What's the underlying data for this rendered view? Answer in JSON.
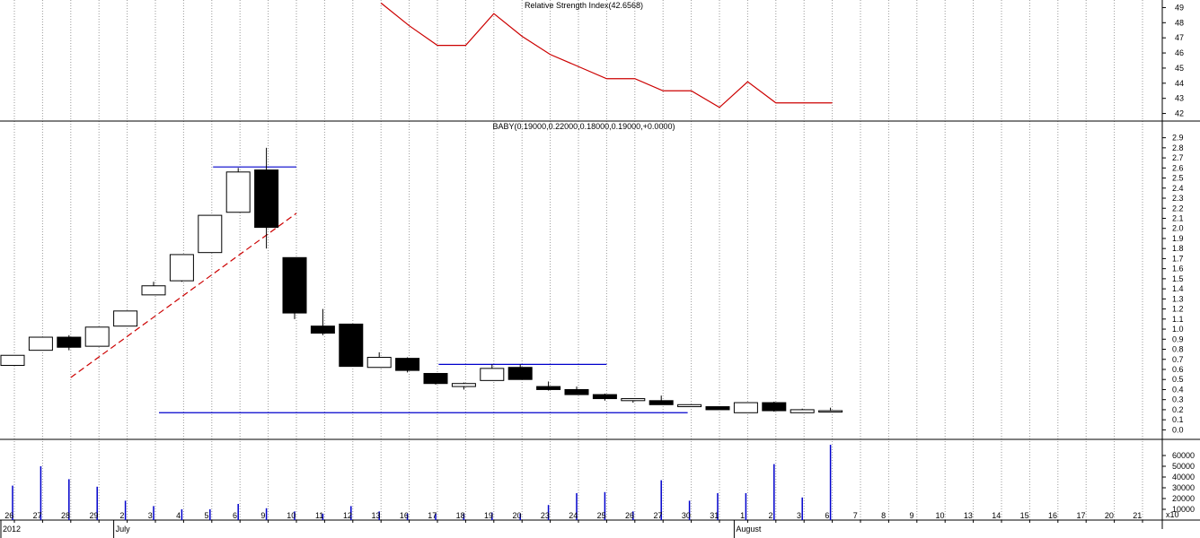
{
  "colors": {
    "background": "#ffffff",
    "grid": "#9a9a9a",
    "rsi_line": "#cc0000",
    "trendline": "#cc0000",
    "level_line": "#0000cc",
    "volume_bar": "#0000cc",
    "up_candle_fill": "#ffffff",
    "down_candle_fill": "#000000",
    "border": "#000000"
  },
  "chart_data": [
    {
      "type": "line",
      "panel": "rsi",
      "title": "Relative Strength Index(42.6568)",
      "y_ticks": [
        "49",
        "48",
        "47",
        "46",
        "45",
        "44",
        "43",
        "42"
      ],
      "ylim": [
        41.5,
        49.5
      ],
      "grid": true,
      "series": [
        {
          "x": [
            "13",
            "16",
            "17",
            "18",
            "19",
            "20",
            "23",
            "24",
            "25",
            "26",
            "27",
            "30",
            "31",
            "1",
            "2",
            "3",
            "6"
          ],
          "values": [
            49.3,
            47.8,
            46.5,
            46.5,
            48.6,
            47.1,
            45.9,
            45.1,
            44.3,
            44.3,
            43.5,
            43.5,
            42.4,
            44.1,
            42.7,
            42.7,
            42.7
          ]
        }
      ]
    },
    {
      "type": "candlestick",
      "panel": "price",
      "title": "BABY(0.19000,0.22000,0.18000,0.19000,+0.0000)",
      "y_ticks": [
        "2.9",
        "2.8",
        "2.7",
        "2.6",
        "2.5",
        "2.4",
        "2.3",
        "2.2",
        "2.1",
        "2.0",
        "1.9",
        "1.8",
        "1.7",
        "1.6",
        "1.5",
        "1.4",
        "1.3",
        "1.2",
        "1.1",
        "1.0",
        "0.9",
        "0.8",
        "0.7",
        "0.6",
        "0.5",
        "0.4",
        "0.3",
        "0.2",
        "0.1",
        "0.0"
      ],
      "ylim": [
        -0.05,
        2.95
      ],
      "grid": true,
      "candles": [
        {
          "x": "26",
          "open": 0.64,
          "high": 0.74,
          "low": 0.64,
          "close": 0.74
        },
        {
          "x": "27",
          "open": 0.79,
          "high": 0.92,
          "low": 0.79,
          "close": 0.92
        },
        {
          "x": "28",
          "open": 0.92,
          "high": 0.94,
          "low": 0.79,
          "close": 0.82
        },
        {
          "x": "29",
          "open": 0.83,
          "high": 1.02,
          "low": 0.83,
          "close": 1.02
        },
        {
          "x": "2",
          "open": 1.03,
          "high": 1.18,
          "low": 1.03,
          "close": 1.18
        },
        {
          "x": "3",
          "open": 1.34,
          "high": 1.47,
          "low": 1.34,
          "close": 1.43
        },
        {
          "x": "4",
          "open": 1.48,
          "high": 1.74,
          "low": 1.47,
          "close": 1.74
        },
        {
          "x": "5",
          "open": 1.76,
          "high": 2.13,
          "low": 1.76,
          "close": 2.13
        },
        {
          "x": "6",
          "open": 2.16,
          "high": 2.6,
          "low": 2.16,
          "close": 2.56
        },
        {
          "x": "9",
          "open": 2.58,
          "high": 2.8,
          "low": 1.8,
          "close": 2.01
        },
        {
          "x": "10",
          "open": 1.71,
          "high": 1.71,
          "low": 1.1,
          "close": 1.16
        },
        {
          "x": "11",
          "open": 1.03,
          "high": 1.2,
          "low": 0.94,
          "close": 0.96
        },
        {
          "x": "12",
          "open": 1.05,
          "high": 1.05,
          "low": 0.63,
          "close": 0.63
        },
        {
          "x": "13",
          "open": 0.62,
          "high": 0.77,
          "low": 0.62,
          "close": 0.72
        },
        {
          "x": "16",
          "open": 0.71,
          "high": 0.72,
          "low": 0.57,
          "close": 0.59
        },
        {
          "x": "17",
          "open": 0.56,
          "high": 0.56,
          "low": 0.45,
          "close": 0.46
        },
        {
          "x": "18",
          "open": 0.43,
          "high": 0.47,
          "low": 0.4,
          "close": 0.46
        },
        {
          "x": "19",
          "open": 0.49,
          "high": 0.65,
          "low": 0.49,
          "close": 0.61
        },
        {
          "x": "20",
          "open": 0.62,
          "high": 0.65,
          "low": 0.5,
          "close": 0.5
        },
        {
          "x": "23",
          "open": 0.43,
          "high": 0.48,
          "low": 0.39,
          "close": 0.4
        },
        {
          "x": "24",
          "open": 0.4,
          "high": 0.43,
          "low": 0.35,
          "close": 0.35
        },
        {
          "x": "25",
          "open": 0.35,
          "high": 0.36,
          "low": 0.29,
          "close": 0.31
        },
        {
          "x": "26",
          "open": 0.29,
          "high": 0.31,
          "low": 0.27,
          "close": 0.31
        },
        {
          "x": "27",
          "open": 0.29,
          "high": 0.34,
          "low": 0.25,
          "close": 0.25
        },
        {
          "x": "30",
          "open": 0.23,
          "high": 0.25,
          "low": 0.23,
          "close": 0.25
        },
        {
          "x": "31",
          "open": 0.23,
          "high": 0.23,
          "low": 0.2,
          "close": 0.2
        },
        {
          "x": "1",
          "open": 0.17,
          "high": 0.27,
          "low": 0.17,
          "close": 0.27
        },
        {
          "x": "2",
          "open": 0.27,
          "high": 0.28,
          "low": 0.18,
          "close": 0.19
        },
        {
          "x": "3",
          "open": 0.17,
          "high": 0.21,
          "low": 0.17,
          "close": 0.2
        },
        {
          "x": "6",
          "open": 0.19,
          "high": 0.22,
          "low": 0.18,
          "close": 0.19
        }
      ],
      "lines": [
        {
          "kind": "trendline",
          "style": "dashed",
          "x1": "28",
          "y1": 0.52,
          "x2": "10",
          "y2": 2.15
        },
        {
          "kind": "level",
          "x1": "6",
          "x2": "10",
          "y": 2.61
        },
        {
          "kind": "level",
          "x1": "18",
          "x2": "25",
          "y": 0.65
        },
        {
          "kind": "level",
          "x1": "30",
          "x2": "3",
          "y": 0.17
        }
      ]
    },
    {
      "type": "bar",
      "panel": "volume",
      "y_ticks": [
        "60000",
        "50000",
        "40000",
        "30000",
        "20000",
        "10000"
      ],
      "scale_label": "x10",
      "ylim": [
        0,
        70000
      ],
      "grid": true,
      "categories": [
        "26",
        "27",
        "28",
        "29",
        "2",
        "3",
        "4",
        "5",
        "6",
        "9",
        "10",
        "11",
        "12",
        "13",
        "16",
        "17",
        "18",
        "19",
        "20",
        "23",
        "24",
        "25",
        "26",
        "27",
        "30",
        "31",
        "1",
        "2",
        "3",
        "6"
      ],
      "values": [
        32000,
        50000,
        38000,
        31000,
        18000,
        13000,
        10000,
        10000,
        15000,
        11000,
        8000,
        6000,
        13000,
        8000,
        6000,
        6000,
        6000,
        7000,
        6000,
        14000,
        25000,
        26000,
        8000,
        37000,
        18000,
        25000,
        25000,
        52000,
        21000,
        70000
      ]
    }
  ],
  "x_axis": {
    "day_labels": [
      "26",
      "27",
      "28",
      "29",
      "2",
      "3",
      "4",
      "5",
      "6",
      "9",
      "10",
      "11",
      "12",
      "13",
      "16",
      "17",
      "18",
      "19",
      "20",
      "23",
      "24",
      "25",
      "26",
      "27",
      "30",
      "31",
      "1",
      "2",
      "3",
      "6",
      "7",
      "8",
      "9",
      "10",
      "13",
      "14",
      "15",
      "16",
      "17",
      "20",
      "21"
    ],
    "month_labels": [
      {
        "text": "2012",
        "at": "26"
      },
      {
        "text": "July",
        "at": "2"
      },
      {
        "text": "August",
        "at": "1"
      }
    ]
  }
}
